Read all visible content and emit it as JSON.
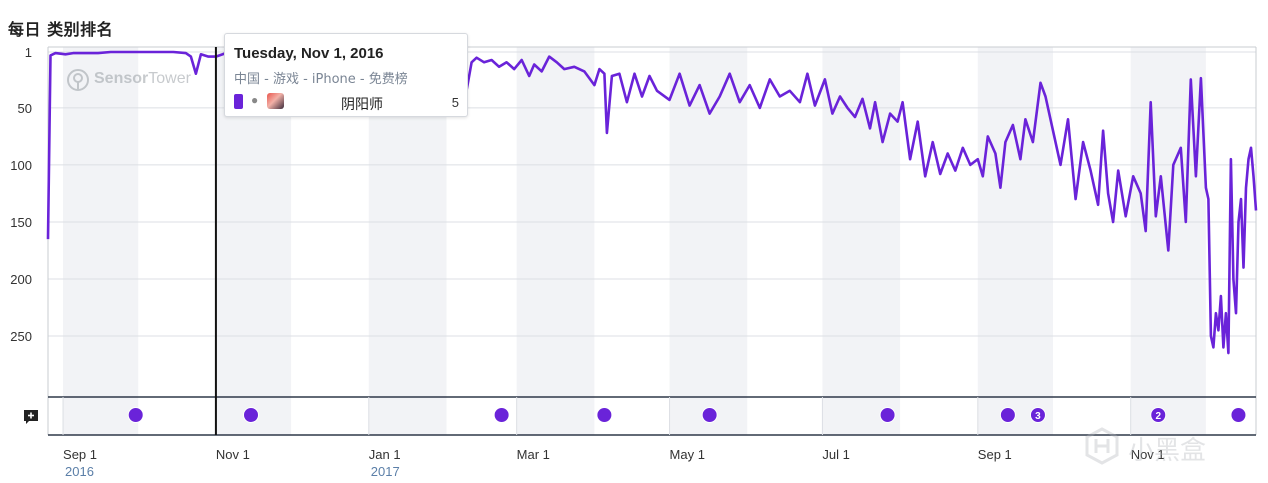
{
  "page": {
    "title": "每日 类别排名"
  },
  "tooltip": {
    "date": "Tuesday, Nov 1, 2016",
    "subtitle": "中国 - 游戏 - iPhone - 免费榜",
    "app_name": "阴阳师",
    "rank": "5",
    "series_color": "#6a23d9"
  },
  "logo": {
    "text_bold": "Sensor",
    "text_light": "Tower"
  },
  "watermark": {
    "text": "小黑盒"
  },
  "chart_data": {
    "type": "line",
    "title": "每日 类别排名",
    "xlabel": "",
    "ylabel": "",
    "y_reversed": true,
    "ylim": [
      1,
      300
    ],
    "y_ticks": [
      1,
      50,
      100,
      150,
      200,
      250
    ],
    "x_range": [
      "2016-08-26",
      "2017-12-21"
    ],
    "x_ticks": [
      {
        "date": "2016-09-01",
        "label": "Sep 1",
        "sublabel": "2016"
      },
      {
        "date": "2016-11-01",
        "label": "Nov 1",
        "sublabel": ""
      },
      {
        "date": "2017-01-01",
        "label": "Jan 1",
        "sublabel": "2017"
      },
      {
        "date": "2017-03-01",
        "label": "Mar 1",
        "sublabel": ""
      },
      {
        "date": "2017-05-01",
        "label": "May 1",
        "sublabel": ""
      },
      {
        "date": "2017-07-01",
        "label": "Jul 1",
        "sublabel": ""
      },
      {
        "date": "2017-09-01",
        "label": "Sep 1",
        "sublabel": ""
      },
      {
        "date": "2017-11-01",
        "label": "Nov 1",
        "sublabel": ""
      }
    ],
    "crosshair_date": "2016-11-01",
    "grid": true,
    "series": [
      {
        "color": "#6a23d9",
        "points": [
          [
            "2016-08-26",
            165
          ],
          [
            "2016-08-27",
            4
          ],
          [
            "2016-08-29",
            2
          ],
          [
            "2016-09-02",
            3
          ],
          [
            "2016-09-05",
            2
          ],
          [
            "2016-09-15",
            2
          ],
          [
            "2016-09-20",
            1
          ],
          [
            "2016-09-25",
            1
          ],
          [
            "2016-10-05",
            1
          ],
          [
            "2016-10-15",
            1
          ],
          [
            "2016-10-20",
            2
          ],
          [
            "2016-10-22",
            5
          ],
          [
            "2016-10-24",
            20
          ],
          [
            "2016-10-26",
            3
          ],
          [
            "2016-10-29",
            5
          ],
          [
            "2016-11-01",
            5
          ],
          [
            "2016-11-05",
            2
          ],
          [
            "2016-11-10",
            2
          ],
          [
            "2017-02-05",
            12
          ],
          [
            "2017-02-07",
            8
          ],
          [
            "2017-02-09",
            35
          ],
          [
            "2017-02-11",
            10
          ],
          [
            "2017-02-13",
            6
          ],
          [
            "2017-02-16",
            10
          ],
          [
            "2017-02-19",
            8
          ],
          [
            "2017-02-22",
            14
          ],
          [
            "2017-02-25",
            10
          ],
          [
            "2017-02-28",
            16
          ],
          [
            "2017-03-03",
            8
          ],
          [
            "2017-03-06",
            22
          ],
          [
            "2017-03-08",
            12
          ],
          [
            "2017-03-11",
            18
          ],
          [
            "2017-03-14",
            5
          ],
          [
            "2017-03-17",
            10
          ],
          [
            "2017-03-20",
            16
          ],
          [
            "2017-03-24",
            14
          ],
          [
            "2017-03-28",
            18
          ],
          [
            "2017-04-01",
            30
          ],
          [
            "2017-04-03",
            16
          ],
          [
            "2017-04-05",
            20
          ],
          [
            "2017-04-06",
            72
          ],
          [
            "2017-04-08",
            22
          ],
          [
            "2017-04-11",
            20
          ],
          [
            "2017-04-14",
            45
          ],
          [
            "2017-04-17",
            20
          ],
          [
            "2017-04-20",
            40
          ],
          [
            "2017-04-23",
            22
          ],
          [
            "2017-04-26",
            35
          ],
          [
            "2017-05-01",
            43
          ],
          [
            "2017-05-05",
            20
          ],
          [
            "2017-05-09",
            48
          ],
          [
            "2017-05-13",
            30
          ],
          [
            "2017-05-17",
            55
          ],
          [
            "2017-05-21",
            40
          ],
          [
            "2017-05-25",
            20
          ],
          [
            "2017-05-29",
            45
          ],
          [
            "2017-06-02",
            30
          ],
          [
            "2017-06-06",
            50
          ],
          [
            "2017-06-10",
            25
          ],
          [
            "2017-06-14",
            40
          ],
          [
            "2017-06-18",
            35
          ],
          [
            "2017-06-22",
            45
          ],
          [
            "2017-06-25",
            20
          ],
          [
            "2017-06-28",
            48
          ],
          [
            "2017-07-02",
            25
          ],
          [
            "2017-07-05",
            55
          ],
          [
            "2017-07-08",
            40
          ],
          [
            "2017-07-11",
            50
          ],
          [
            "2017-07-14",
            58
          ],
          [
            "2017-07-17",
            42
          ],
          [
            "2017-07-20",
            68
          ],
          [
            "2017-07-22",
            45
          ],
          [
            "2017-07-25",
            80
          ],
          [
            "2017-07-28",
            55
          ],
          [
            "2017-07-31",
            62
          ],
          [
            "2017-08-02",
            45
          ],
          [
            "2017-08-05",
            95
          ],
          [
            "2017-08-08",
            62
          ],
          [
            "2017-08-11",
            110
          ],
          [
            "2017-08-14",
            80
          ],
          [
            "2017-08-17",
            108
          ],
          [
            "2017-08-20",
            90
          ],
          [
            "2017-08-23",
            105
          ],
          [
            "2017-08-26",
            85
          ],
          [
            "2017-08-29",
            100
          ],
          [
            "2017-09-01",
            95
          ],
          [
            "2017-09-03",
            110
          ],
          [
            "2017-09-05",
            75
          ],
          [
            "2017-09-08",
            90
          ],
          [
            "2017-09-10",
            120
          ],
          [
            "2017-09-12",
            80
          ],
          [
            "2017-09-15",
            65
          ],
          [
            "2017-09-18",
            95
          ],
          [
            "2017-09-20",
            60
          ],
          [
            "2017-09-23",
            80
          ],
          [
            "2017-09-26",
            28
          ],
          [
            "2017-09-28",
            40
          ],
          [
            "2017-10-01",
            70
          ],
          [
            "2017-10-04",
            100
          ],
          [
            "2017-10-07",
            60
          ],
          [
            "2017-10-10",
            130
          ],
          [
            "2017-10-13",
            80
          ],
          [
            "2017-10-16",
            105
          ],
          [
            "2017-10-19",
            135
          ],
          [
            "2017-10-21",
            70
          ],
          [
            "2017-10-23",
            125
          ],
          [
            "2017-10-25",
            150
          ],
          [
            "2017-10-27",
            105
          ],
          [
            "2017-10-30",
            145
          ],
          [
            "2017-11-02",
            110
          ],
          [
            "2017-11-05",
            125
          ],
          [
            "2017-11-07",
            158
          ],
          [
            "2017-11-09",
            45
          ],
          [
            "2017-11-11",
            145
          ],
          [
            "2017-11-13",
            110
          ],
          [
            "2017-11-16",
            175
          ],
          [
            "2017-11-18",
            100
          ],
          [
            "2017-11-21",
            85
          ],
          [
            "2017-11-23",
            150
          ],
          [
            "2017-11-25",
            25
          ],
          [
            "2017-11-27",
            110
          ],
          [
            "2017-11-29",
            24
          ],
          [
            "2017-12-01",
            120
          ],
          [
            "2017-12-02",
            130
          ],
          [
            "2017-12-03",
            250
          ],
          [
            "2017-12-04",
            260
          ],
          [
            "2017-12-05",
            230
          ],
          [
            "2017-12-06",
            245
          ],
          [
            "2017-12-07",
            215
          ],
          [
            "2017-12-08",
            260
          ],
          [
            "2017-12-09",
            230
          ],
          [
            "2017-12-10",
            265
          ],
          [
            "2017-12-11",
            95
          ],
          [
            "2017-12-12",
            200
          ],
          [
            "2017-12-13",
            230
          ],
          [
            "2017-12-14",
            150
          ],
          [
            "2017-12-15",
            130
          ],
          [
            "2017-12-16",
            190
          ],
          [
            "2017-12-17",
            120
          ],
          [
            "2017-12-18",
            95
          ],
          [
            "2017-12-19",
            85
          ],
          [
            "2017-12-20",
            110
          ],
          [
            "2017-12-21",
            140
          ]
        ]
      }
    ],
    "events": [
      {
        "date": "2016-09-30",
        "count": ""
      },
      {
        "date": "2016-11-15",
        "count": ""
      },
      {
        "date": "2017-02-23",
        "count": ""
      },
      {
        "date": "2017-04-05",
        "count": ""
      },
      {
        "date": "2017-05-17",
        "count": ""
      },
      {
        "date": "2017-07-27",
        "count": ""
      },
      {
        "date": "2017-09-13",
        "count": ""
      },
      {
        "date": "2017-09-25",
        "count": "3"
      },
      {
        "date": "2017-11-12",
        "count": "2"
      },
      {
        "date": "2017-12-14",
        "count": ""
      }
    ]
  }
}
